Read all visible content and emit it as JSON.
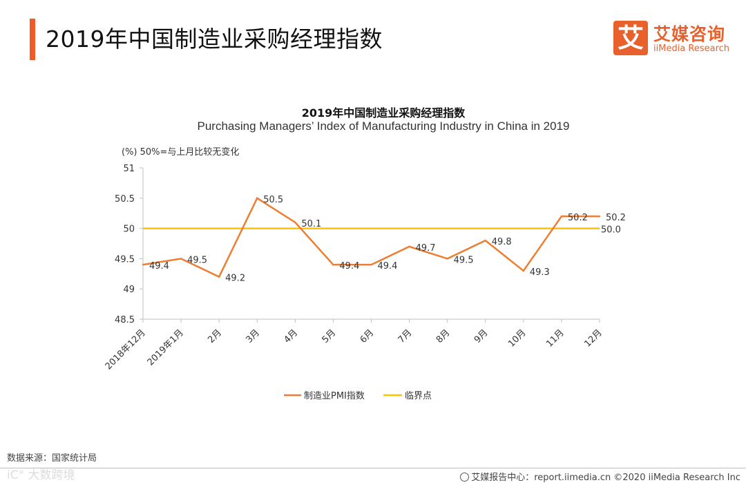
{
  "header": {
    "title": "2019年中国制造业采购经理指数",
    "logo": {
      "mark": "艾",
      "name_cn": "艾媒咨询",
      "name_en": "iiMedia Research"
    }
  },
  "chart_data": {
    "type": "line",
    "title": "2019年中国制造业采购经理指数",
    "subtitle": "Purchasing Managers’ Index of Manufacturing Industry in China in 2019",
    "unit_note": "(%)  50%=与上月比较无变化",
    "categories": [
      "2018年12月",
      "2019年1月",
      "2月",
      "3月",
      "4月",
      "5月",
      "6月",
      "7月",
      "8月",
      "9月",
      "10月",
      "11月",
      "12月"
    ],
    "series": [
      {
        "name": "制造业PMI指数",
        "color": "#ed7d31",
        "values": [
          49.4,
          49.5,
          49.2,
          50.5,
          50.1,
          49.4,
          49.4,
          49.7,
          49.5,
          49.8,
          49.3,
          50.2,
          50.2
        ],
        "labels": [
          "49.4",
          "49.5",
          "49.2",
          "50.5",
          "50.1",
          "49.4",
          "49.4",
          "49.7",
          "49.5",
          "49.8",
          "49.3",
          "50.2",
          "50.2"
        ]
      },
      {
        "name": "临界点",
        "color": "#ffc000",
        "values": [
          50,
          50,
          50,
          50,
          50,
          50,
          50,
          50,
          50,
          50,
          50,
          50,
          50
        ],
        "end_label": "50.0"
      }
    ],
    "ylim": [
      48.5,
      51
    ],
    "yticks": [
      "48.5",
      "49",
      "49.5",
      "50",
      "50.5",
      "51"
    ],
    "xlabel": "",
    "ylabel": "%",
    "legend_position": "bottom",
    "grid": false
  },
  "footer": {
    "source": "数据来源：国家统计局",
    "watermark": "iC° 大数跨境",
    "copyright": "艾媒报告中心：report.iimedia.cn  ©2020  iiMedia Research  Inc"
  }
}
